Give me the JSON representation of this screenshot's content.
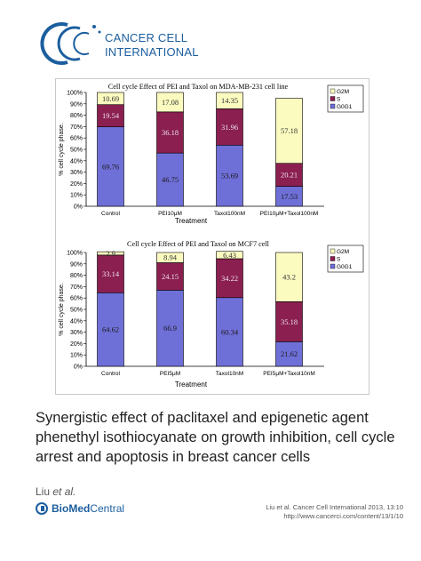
{
  "header": {
    "brand_line1": "CANCER CELL",
    "brand_line2": "INTERNATIONAL",
    "brand_color": "#1b5e9e"
  },
  "article": {
    "title": "Synergistic effect of paclitaxel and epigenetic agent phenethyl isothiocyanate on growth inhibition, cell cycle arrest and apoptosis in breast cancer cells",
    "authors_prefix": "Liu",
    "authors_suffix": "et al.",
    "citation_journal": "Liu et al. Cancer Cell International 2013, 13:10",
    "citation_url": "http://www.cancerci.com/content/13/1/10",
    "publisher_bold": "BioMed",
    "publisher_rest": " Central"
  },
  "chart_data": [
    {
      "type": "bar",
      "stacked": true,
      "title": "Cell cycle Effect of PEI and Taxol on MDA-MB-231 cell line",
      "xlabel": "Treatment",
      "ylabel": "% cell cycle phase.",
      "ylim": [
        0,
        100
      ],
      "yticks": [
        "0%",
        "10%",
        "20%",
        "30%",
        "40%",
        "50%",
        "60%",
        "70%",
        "80%",
        "90%",
        "100%"
      ],
      "categories": [
        "Control",
        "PEI10μM",
        "Taxol100nM",
        "PEI10μM+Taxol100nM"
      ],
      "legend_position": "top-right",
      "series": [
        {
          "name": "G0G1",
          "color": "#6f6fd8",
          "values": [
            69.76,
            46.75,
            53.69,
            17.53
          ],
          "labels": [
            "69.76",
            "46.75",
            "53.69",
            "17.53"
          ]
        },
        {
          "name": "S",
          "color": "#8a1f50",
          "values": [
            19.54,
            36.18,
            31.96,
            20.21
          ],
          "labels": [
            "19.54",
            "36.18",
            "31.96",
            "20.21"
          ]
        },
        {
          "name": "G2M",
          "color": "#fbfbc0",
          "values": [
            10.69,
            17.08,
            14.35,
            57.18
          ],
          "labels": [
            "10.69",
            "17.08",
            "14.35",
            "57.18"
          ]
        }
      ]
    },
    {
      "type": "bar",
      "stacked": true,
      "title": "Cell cycle Effect of PEI and Taxol on MCF7 cell",
      "xlabel": "Treatment",
      "ylabel": "% cell cycle phase.",
      "ylim": [
        0,
        100
      ],
      "yticks": [
        "0%",
        "10%",
        "20%",
        "30%",
        "40%",
        "50%",
        "60%",
        "70%",
        "80%",
        "90%",
        "100%"
      ],
      "categories": [
        "Control",
        "PEI5μM",
        "Taxol10nM",
        "PEI5μM+Taxol10nM"
      ],
      "legend_position": "top-right",
      "series": [
        {
          "name": "G0G1",
          "color": "#6f6fd8",
          "values": [
            64.62,
            66.9,
            60.34,
            21.62
          ],
          "labels": [
            "64.62",
            "66.9",
            "60.34",
            "21.62"
          ]
        },
        {
          "name": "S",
          "color": "#8a1f50",
          "values": [
            33.14,
            24.15,
            34.22,
            35.18
          ],
          "labels": [
            "33.14",
            "24.15",
            "34.22",
            "35.18"
          ]
        },
        {
          "name": "G2M",
          "color": "#fbfbc0",
          "values": [
            2.9,
            8.94,
            6.43,
            43.2
          ],
          "labels": [
            "2.9",
            "8.94",
            "6.43",
            "43.2"
          ]
        }
      ]
    }
  ]
}
